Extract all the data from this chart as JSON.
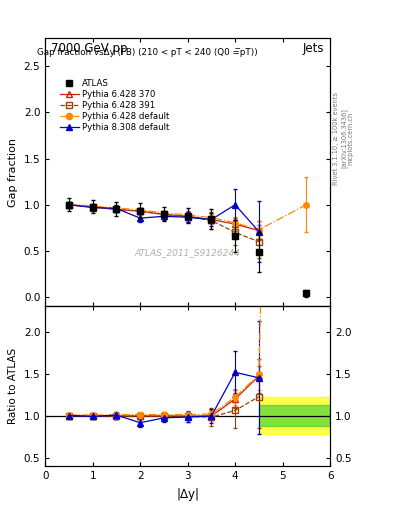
{
  "title_top": "7000 GeV pp",
  "title_top_right": "Jets",
  "plot_title": "Gap fraction vsΔy (FB) (210 < pT < 240 (Q0 =̅pT))",
  "ylabel_main": "Gap fraction",
  "ylabel_ratio": "Ratio to ATLAS",
  "xlabel": "|$\\Delta$y|",
  "watermark": "ATLAS_2011_S9126244",
  "rivet_label": "Rivet 3.1.10, ≥ 100k events",
  "arxiv_label": "[arXiv:1306.3436]",
  "mcplots_label": "mcplots.cern.ch",
  "atlas_x": [
    0.5,
    1.0,
    1.5,
    2.0,
    2.5,
    3.0,
    3.5,
    4.0,
    4.5,
    5.5
  ],
  "atlas_y": [
    1.0,
    0.98,
    0.955,
    0.935,
    0.9,
    0.88,
    0.845,
    0.66,
    0.49,
    0.04
  ],
  "atlas_yerr_lo": [
    0.07,
    0.07,
    0.08,
    0.08,
    0.08,
    0.08,
    0.11,
    0.17,
    0.22,
    0.04
  ],
  "atlas_yerr_hi": [
    0.07,
    0.07,
    0.08,
    0.08,
    0.08,
    0.08,
    0.11,
    0.17,
    0.22,
    0.04
  ],
  "p6428_370_x": [
    0.5,
    1.0,
    1.5,
    2.0,
    2.5,
    3.0,
    3.5,
    4.0,
    4.5
  ],
  "p6428_370_y": [
    1.0,
    0.975,
    0.95,
    0.93,
    0.895,
    0.875,
    0.84,
    0.79,
    0.72
  ],
  "p6428_370_yerr": [
    0.02,
    0.025,
    0.03,
    0.03,
    0.03,
    0.035,
    0.04,
    0.07,
    0.1
  ],
  "p6428_391_x": [
    0.5,
    1.0,
    1.5,
    2.0,
    2.5,
    3.0,
    3.5,
    4.0,
    4.5
  ],
  "p6428_391_y": [
    1.0,
    0.975,
    0.95,
    0.93,
    0.895,
    0.87,
    0.83,
    0.7,
    0.6
  ],
  "p6428_391_yerr": [
    0.02,
    0.025,
    0.03,
    0.03,
    0.04,
    0.06,
    0.09,
    0.14,
    0.18
  ],
  "p6428_def_x": [
    0.5,
    1.0,
    1.5,
    2.0,
    2.5,
    3.0,
    3.5,
    4.0,
    4.5,
    5.5
  ],
  "p6428_def_y": [
    1.01,
    0.985,
    0.965,
    0.945,
    0.91,
    0.89,
    0.86,
    0.805,
    0.73,
    1.0
  ],
  "p6428_def_yerr": [
    0.015,
    0.02,
    0.025,
    0.025,
    0.025,
    0.03,
    0.04,
    0.065,
    0.09,
    0.3
  ],
  "p8308_def_x": [
    0.5,
    1.0,
    1.5,
    2.0,
    2.5,
    3.0,
    3.5,
    4.0,
    4.5
  ],
  "p8308_def_y": [
    1.0,
    0.97,
    0.96,
    0.855,
    0.875,
    0.865,
    0.84,
    1.0,
    0.71
  ],
  "p8308_def_yerr": [
    0.025,
    0.03,
    0.04,
    0.045,
    0.045,
    0.055,
    0.07,
    0.17,
    0.33
  ],
  "color_atlas": "#000000",
  "color_p6428_370": "#cc2200",
  "color_p6428_391": "#994400",
  "color_p6428_def": "#ff8800",
  "color_p8308_def": "#0000cc",
  "xlim": [
    0,
    6
  ],
  "ylim_main": [
    -0.1,
    2.8
  ],
  "ylim_ratio": [
    0.4,
    2.3
  ],
  "band_yellow_x0": 4.5,
  "band_yellow_x1": 6.0,
  "band_yellow_lo": 0.78,
  "band_yellow_hi": 1.22,
  "band_green_x0": 4.5,
  "band_green_x1": 6.0,
  "band_green_lo": 0.88,
  "band_green_hi": 1.12
}
